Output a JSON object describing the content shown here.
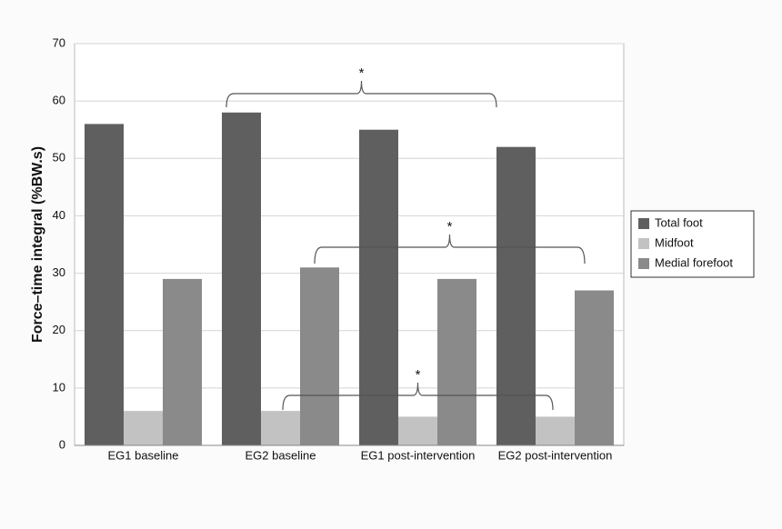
{
  "chart_data": {
    "type": "bar",
    "y_label": "Force–time integral (%BW.s)",
    "categories": [
      "EG1 baseline",
      "EG2 baseline",
      "EG1 post-intervention",
      "EG2 post-intervention"
    ],
    "series": [
      {
        "name": "Total foot",
        "color": "#5f5f5f",
        "values": [
          56,
          58,
          55,
          52
        ]
      },
      {
        "name": "Midfoot",
        "color": "#c2c2c2",
        "values": [
          6,
          6,
          5,
          5
        ]
      },
      {
        "name": "Medial forefoot",
        "color": "#8a8a8a",
        "values": [
          29,
          31,
          29,
          27
        ]
      }
    ],
    "ylim": [
      0,
      70
    ],
    "yticks": [
      0,
      10,
      20,
      30,
      40,
      50,
      60,
      70
    ],
    "grid": true,
    "legend": "right",
    "annotations": [
      {
        "text": "*"
      },
      {
        "text": "*"
      },
      {
        "text": "*"
      }
    ]
  }
}
